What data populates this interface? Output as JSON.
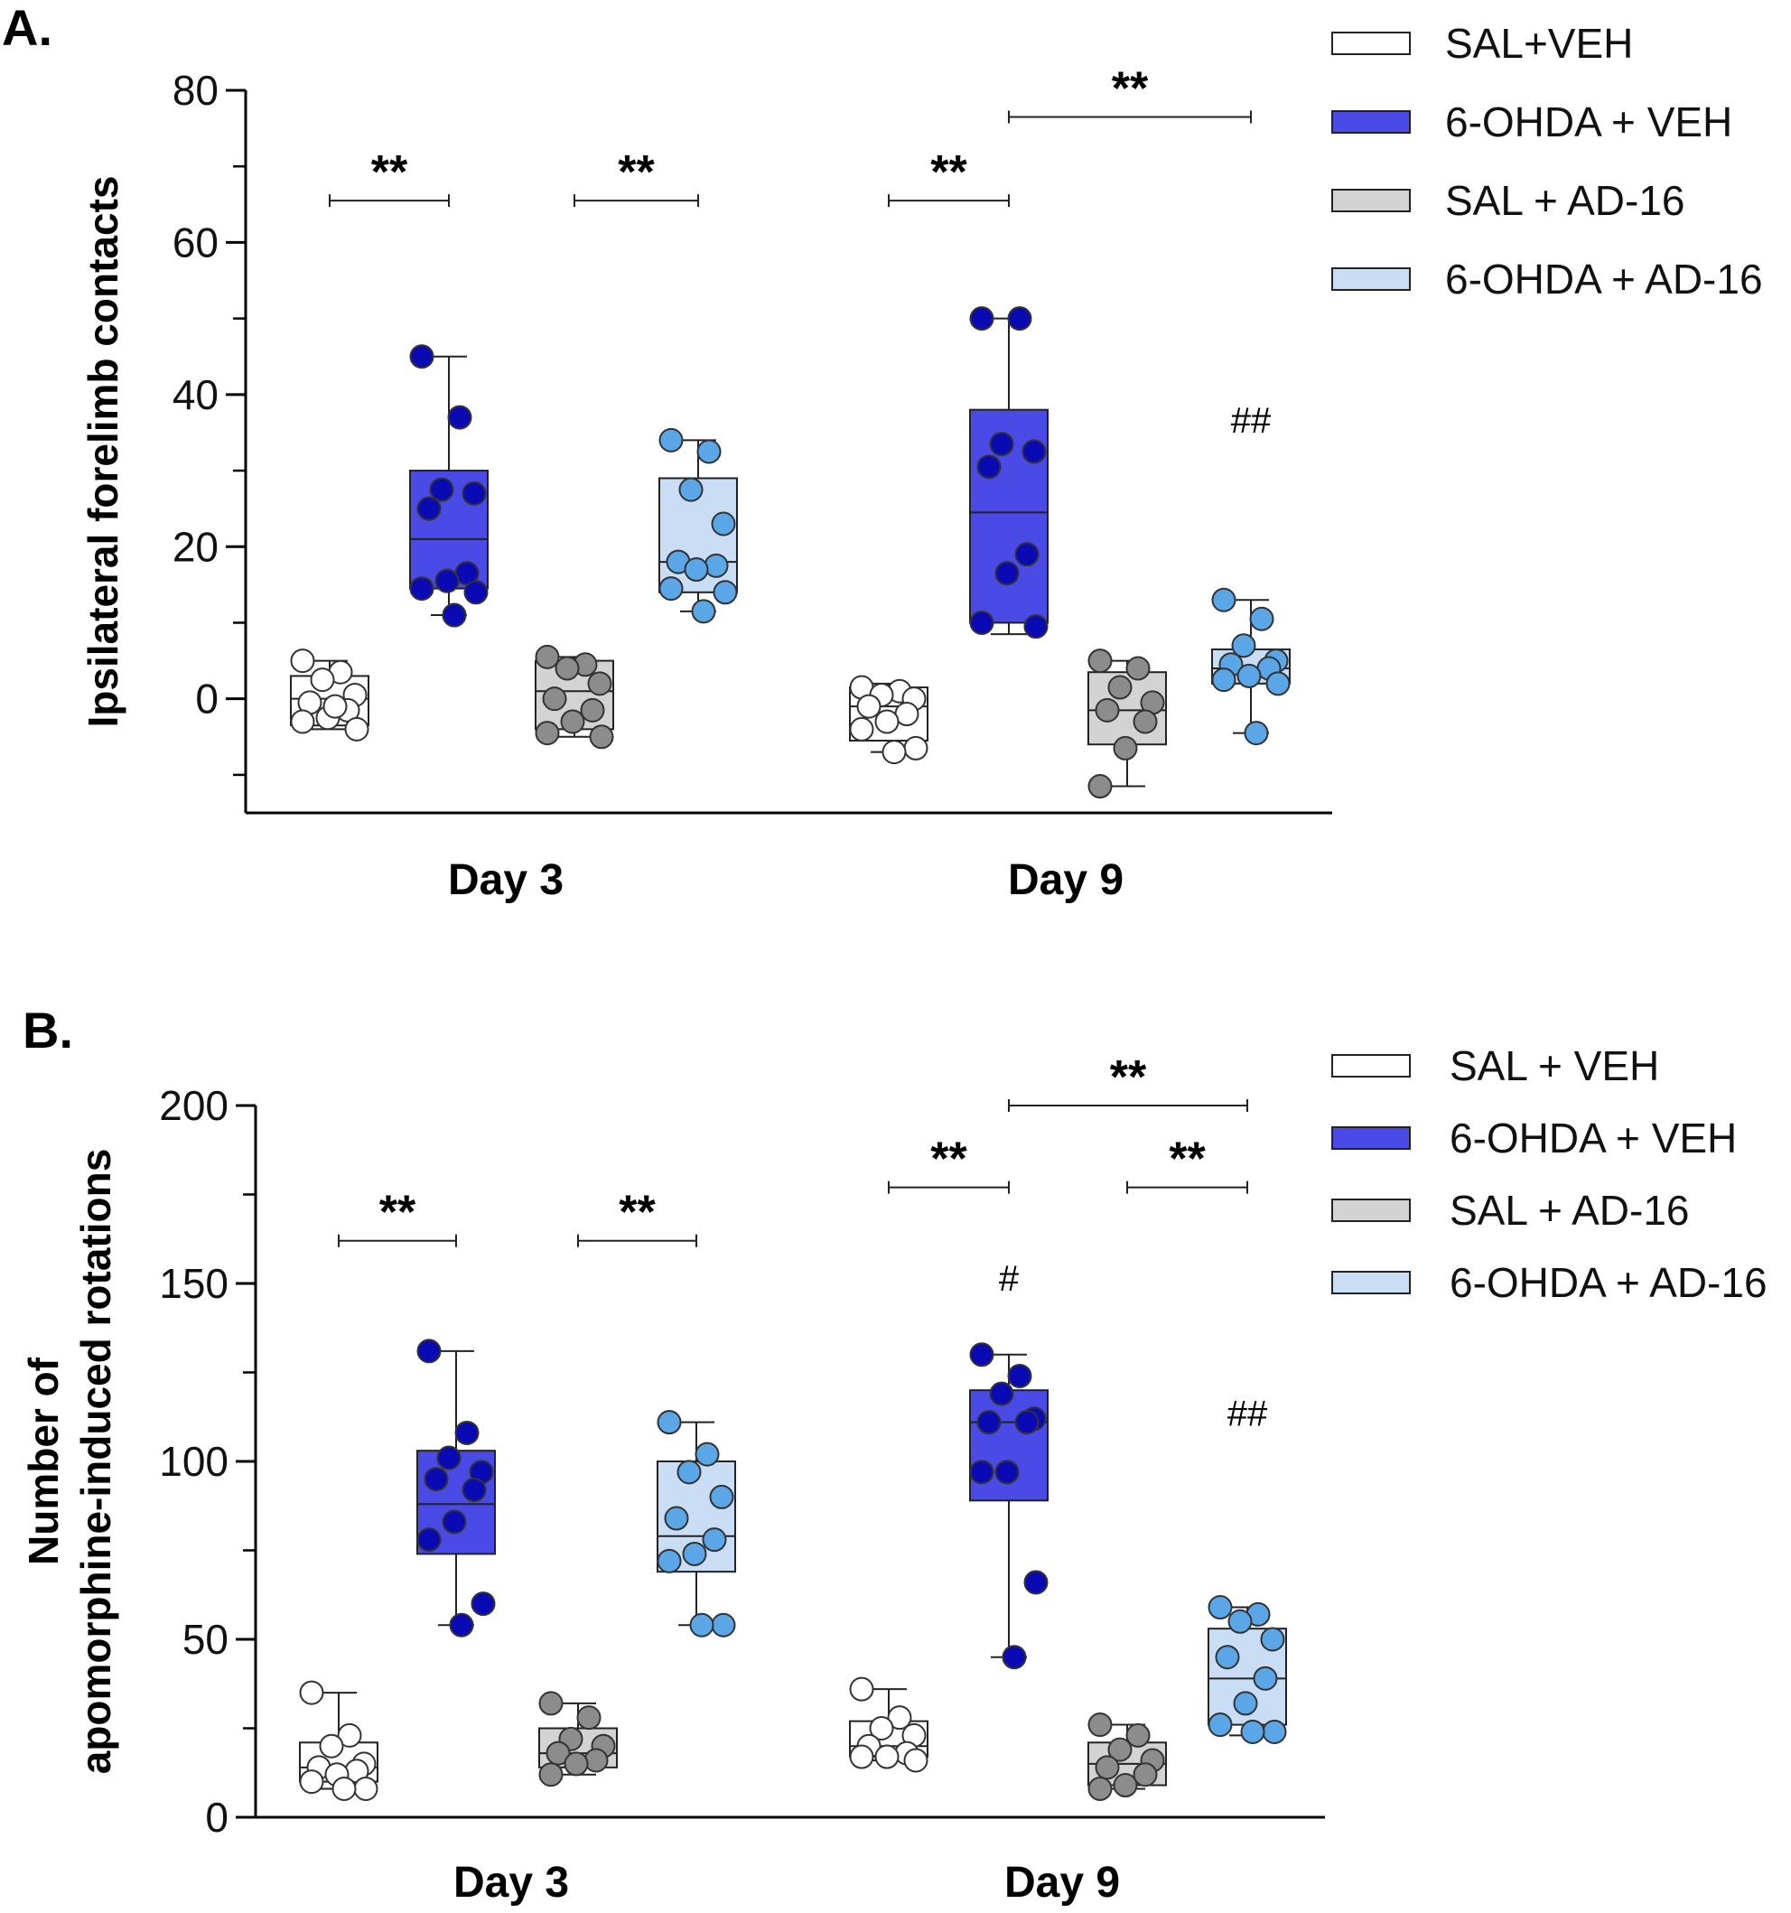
{
  "chart_data": [
    {
      "panel_label": "A.",
      "type": "box-scatter",
      "ylabel": "Ipsilateral forelimb contacts",
      "ylim": [
        -15,
        80
      ],
      "yticks": [
        0,
        20,
        40,
        60,
        80
      ],
      "ytick_labels": [
        "0",
        "20",
        "40",
        "60",
        "80"
      ],
      "categories": [
        "Day 3",
        "Day 9"
      ],
      "legend": {
        "placement": "top-right",
        "entries": [
          "SAL+VEH",
          "6-OHDA + VEH",
          "SAL + AD-16",
          "6-OHDA + AD-16"
        ]
      },
      "series_colors": {
        "box_fill": [
          "#ffffff",
          "#4a4ae6",
          "#d3d3d3",
          "#c9ddf5"
        ],
        "dot_fill": [
          "#ffffff",
          "#0a0ab4",
          "#8c8c8c",
          "#5aa6e6"
        ]
      },
      "groups": [
        {
          "category": "Day 3",
          "series": 0,
          "min": -4,
          "q1": -3.5,
          "median": 0,
          "q3": 3,
          "max": 5,
          "points": [
            5,
            3.5,
            2.5,
            0.5,
            -0.5,
            -1.5,
            -2.5,
            -3,
            -4,
            -1
          ]
        },
        {
          "category": "Day 3",
          "series": 1,
          "min": 11,
          "q1": 14.5,
          "median": 21,
          "q3": 30,
          "max": 45,
          "points": [
            45,
            37,
            27.5,
            27,
            25,
            16.5,
            15.5,
            14.5,
            14,
            11
          ]
        },
        {
          "category": "Day 3",
          "series": 2,
          "min": -5,
          "q1": -4,
          "median": 1,
          "q3": 5,
          "max": 5.5,
          "points": [
            5.5,
            4.5,
            4,
            2,
            0,
            -1.5,
            -3,
            -4.5,
            -5
          ]
        },
        {
          "category": "Day 3",
          "series": 3,
          "min": 11.5,
          "q1": 14,
          "median": 18,
          "q3": 29,
          "max": 34,
          "points": [
            34,
            32.5,
            27.5,
            23,
            18,
            17.5,
            17,
            14.5,
            14,
            11.5
          ]
        },
        {
          "category": "Day 9",
          "series": 0,
          "min": -7,
          "q1": -5.5,
          "median": -1,
          "q3": 1.5,
          "max": 2,
          "points": [
            1.5,
            1,
            0.5,
            0,
            -1,
            -2,
            -3,
            -4,
            -6.5,
            -7
          ]
        },
        {
          "category": "Day 9",
          "series": 1,
          "min": 8.5,
          "q1": 10,
          "median": 24.5,
          "q3": 38,
          "max": 50,
          "points": [
            50,
            50,
            33.5,
            32.5,
            30.5,
            19,
            16.5,
            10,
            9.5
          ]
        },
        {
          "category": "Day 9",
          "series": 2,
          "min": -11.5,
          "q1": -6,
          "median": -1.5,
          "q3": 3.5,
          "max": 5,
          "points": [
            5,
            4,
            1.5,
            -0.5,
            -1.5,
            -3,
            -6.5,
            -11.5
          ]
        },
        {
          "category": "Day 9",
          "series": 3,
          "min": -4.5,
          "q1": 2,
          "median": 4,
          "q3": 6.5,
          "max": 13,
          "points": [
            13,
            10.5,
            7,
            5,
            4.5,
            4,
            3,
            2.5,
            2,
            -4.5
          ]
        }
      ],
      "significance": [
        {
          "from": [
            0,
            0
          ],
          "to": [
            0,
            1
          ],
          "y": 65.5,
          "label": "**"
        },
        {
          "from": [
            0,
            2
          ],
          "to": [
            0,
            3
          ],
          "y": 65.5,
          "label": "**"
        },
        {
          "from": [
            1,
            0
          ],
          "to": [
            1,
            1
          ],
          "y": 65.5,
          "label": "**"
        },
        {
          "from": [
            1,
            1
          ],
          "to": [
            1,
            3
          ],
          "y": 76.5,
          "label": "**"
        }
      ],
      "annotations": [
        {
          "category_index": 1,
          "series": 3,
          "y": 35,
          "label": "##"
        }
      ]
    },
    {
      "panel_label": "B.",
      "type": "box-scatter",
      "ylabel_lines": [
        "Number of",
        "apomorphine-induced rotations"
      ],
      "ylim": [
        0,
        200
      ],
      "yticks": [
        0,
        50,
        100,
        150,
        200
      ],
      "ytick_labels": [
        "0",
        "50",
        "100",
        "150",
        "200"
      ],
      "categories": [
        "Day 3",
        "Day 9"
      ],
      "legend": {
        "placement": "top-right",
        "entries": [
          "SAL + VEH",
          "6-OHDA + VEH",
          "SAL + AD-16",
          "6-OHDA + AD-16"
        ]
      },
      "series_colors": {
        "box_fill": [
          "#ffffff",
          "#4a4ae6",
          "#d3d3d3",
          "#c9ddf5"
        ],
        "dot_fill": [
          "#ffffff",
          "#0a0ab4",
          "#8c8c8c",
          "#5aa6e6"
        ]
      },
      "groups": [
        {
          "category": "Day 3",
          "series": 0,
          "min": 8,
          "q1": 10,
          "median": 14,
          "q3": 21,
          "max": 35,
          "points": [
            35,
            23,
            20,
            15,
            14,
            13,
            12,
            10,
            8,
            8
          ]
        },
        {
          "category": "Day 3",
          "series": 1,
          "min": 54,
          "q1": 74,
          "median": 88,
          "q3": 103,
          "max": 131,
          "points": [
            131,
            108,
            101,
            97,
            95,
            92,
            83,
            78,
            60,
            54
          ]
        },
        {
          "category": "Day 3",
          "series": 2,
          "min": 12,
          "q1": 14,
          "median": 18,
          "q3": 25,
          "max": 32,
          "points": [
            32,
            28,
            22,
            20,
            18,
            16,
            15,
            12
          ]
        },
        {
          "category": "Day 3",
          "series": 3,
          "min": 54,
          "q1": 69,
          "median": 79,
          "q3": 100,
          "max": 111,
          "points": [
            111,
            102,
            97,
            90,
            84,
            78,
            74,
            72,
            54,
            54
          ]
        },
        {
          "category": "Day 9",
          "series": 0,
          "min": 16,
          "q1": 17,
          "median": 20,
          "q3": 27,
          "max": 36,
          "points": [
            36,
            28,
            25,
            23,
            20,
            18,
            17,
            17,
            16
          ]
        },
        {
          "category": "Day 9",
          "series": 1,
          "min": 45,
          "q1": 89,
          "median": 111,
          "q3": 120,
          "max": 130,
          "points": [
            130,
            124,
            119,
            112,
            111,
            111,
            97,
            97,
            66,
            45
          ]
        },
        {
          "category": "Day 9",
          "series": 2,
          "min": 8,
          "q1": 9,
          "median": 15,
          "q3": 21,
          "max": 26,
          "points": [
            26,
            23,
            19,
            16,
            14,
            12,
            9,
            8
          ]
        },
        {
          "category": "Day 9",
          "series": 3,
          "min": 23,
          "q1": 26,
          "median": 39,
          "q3": 53,
          "max": 59,
          "points": [
            59,
            57,
            55,
            50,
            45,
            39,
            32,
            26,
            24,
            24
          ]
        }
      ],
      "significance": [
        {
          "from": [
            0,
            0
          ],
          "to": [
            0,
            1
          ],
          "y": 162,
          "label": "**"
        },
        {
          "from": [
            0,
            2
          ],
          "to": [
            0,
            3
          ],
          "y": 162,
          "label": "**"
        },
        {
          "from": [
            1,
            0
          ],
          "to": [
            1,
            1
          ],
          "y": 177,
          "label": "**"
        },
        {
          "from": [
            1,
            2
          ],
          "to": [
            1,
            3
          ],
          "y": 177,
          "label": "**"
        },
        {
          "from": [
            1,
            1
          ],
          "to": [
            1,
            3
          ],
          "y": 200,
          "label": "**"
        }
      ],
      "annotations": [
        {
          "category_index": 1,
          "series": 1,
          "y": 148,
          "label": "#"
        },
        {
          "category_index": 1,
          "series": 3,
          "y": 110,
          "label": "##"
        }
      ]
    }
  ]
}
